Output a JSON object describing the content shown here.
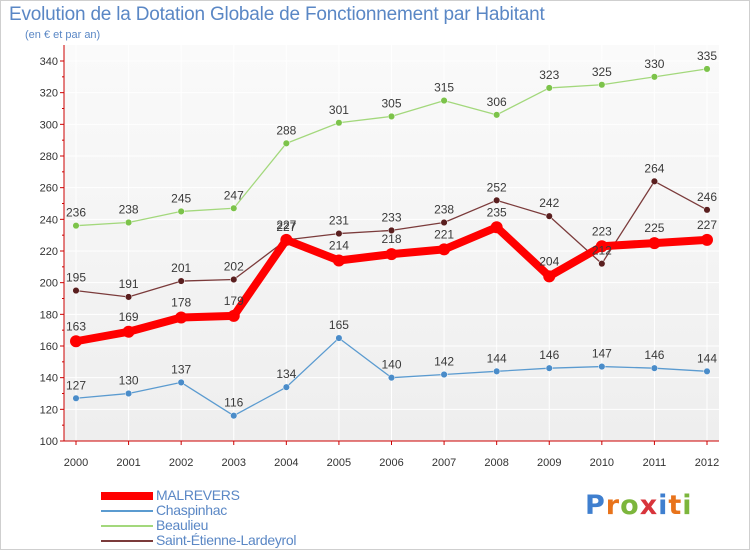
{
  "title": "Evolution de la Dotation Globale de Fonctionnement par Habitant",
  "subtitle": "(en € et par an)",
  "logo": {
    "text": "Proxiti",
    "letters": [
      "P",
      "r",
      "o",
      "x",
      "i",
      "t",
      "i"
    ],
    "colors": [
      "#3f7fcf",
      "#e8731b",
      "#7cb63c",
      "#d8343b",
      "#3f7fcf",
      "#e8731b",
      "#7cb63c"
    ]
  },
  "chart_data": {
    "type": "line",
    "title": "Evolution de la Dotation Globale de Fonctionnement par Habitant",
    "subtitle": "(en € et par an)",
    "xlabel": "",
    "ylabel": "",
    "x": [
      2000,
      2001,
      2002,
      2003,
      2004,
      2005,
      2006,
      2007,
      2008,
      2009,
      2010,
      2011,
      2012
    ],
    "ylim": [
      100,
      340
    ],
    "yticks": [
      100,
      120,
      140,
      160,
      180,
      200,
      220,
      240,
      260,
      280,
      300,
      320,
      340
    ],
    "grid": true,
    "legend_position": "bottom-left",
    "series": [
      {
        "name": "Chaspinhac",
        "color": "#5b9bd0",
        "marker": "#4a8cc9",
        "width": "thin",
        "values": [
          127,
          130,
          137,
          116,
          134,
          165,
          140,
          142,
          144,
          146,
          147,
          146,
          144
        ]
      },
      {
        "name": "Beaulieu",
        "color": "#a3d87c",
        "marker": "#7cc34a",
        "width": "thin",
        "values": [
          236,
          238,
          245,
          247,
          288,
          301,
          305,
          315,
          306,
          323,
          325,
          330,
          335
        ]
      },
      {
        "name": "Saint-Étienne-Lardeyrol",
        "color": "#7b3b3b",
        "marker": "#5a1f1f",
        "width": "thin",
        "values": [
          195,
          191,
          201,
          202,
          227,
          231,
          233,
          238,
          252,
          242,
          212,
          264,
          246
        ]
      },
      {
        "name": "MALREVERS",
        "color": "#ff0000",
        "marker": "#ff0000",
        "width": "thick",
        "values": [
          163,
          169,
          178,
          179,
          227,
          214,
          218,
          221,
          235,
          204,
          223,
          225,
          227
        ]
      }
    ],
    "legend_order": [
      "MALREVERS",
      "Chaspinhac",
      "Beaulieu",
      "Saint-Étienne-Lardeyrol"
    ]
  }
}
